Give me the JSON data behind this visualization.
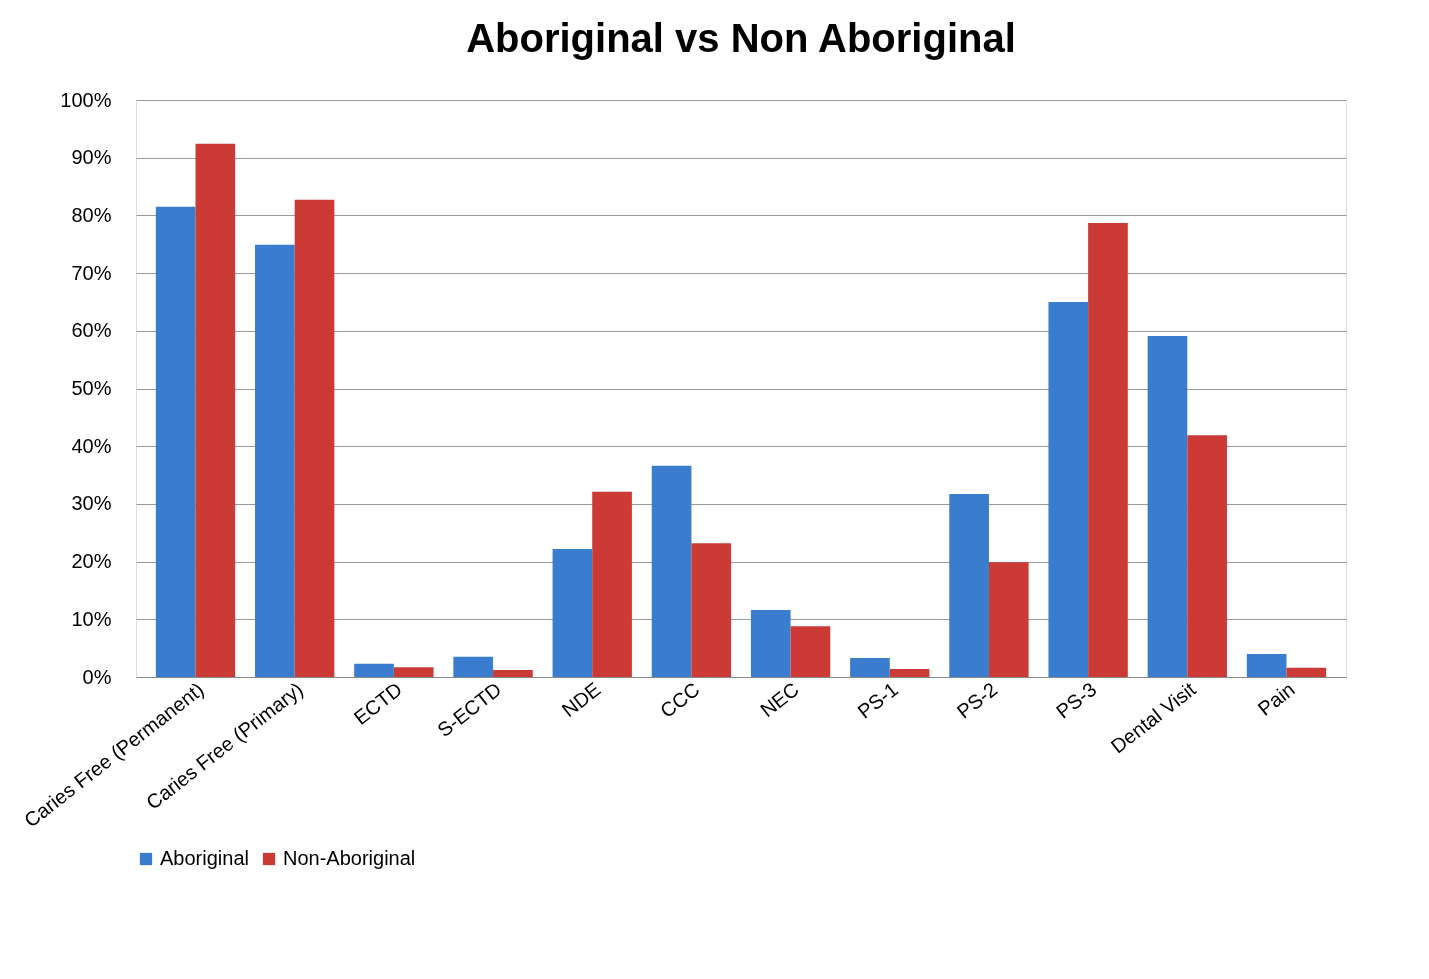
{
  "chart_data": {
    "type": "bar",
    "title": "Aboriginal vs Non Aboriginal",
    "categories": [
      "Caries Free (Permanent)",
      "Caries Free (Primary)",
      "ECTD",
      "S-ECTD",
      "NDE",
      "CCC",
      "NEC",
      "PS-1",
      "PS-2",
      "PS-3",
      "Dental Visit",
      "Pain"
    ],
    "series": [
      {
        "name": "Aboriginal",
        "color": "#3a7dcf",
        "values": [
          81.5,
          74.9,
          2.3,
          3.5,
          22.2,
          36.6,
          11.6,
          3.3,
          31.7,
          65.0,
          59.1,
          4.0
        ]
      },
      {
        "name": "Non-Aboriginal",
        "color": "#cc3a36",
        "values": [
          92.4,
          82.7,
          1.7,
          1.2,
          32.1,
          23.2,
          8.8,
          1.4,
          19.9,
          78.7,
          41.9,
          1.6
        ]
      }
    ],
    "ylim": [
      0,
      100
    ],
    "yticks": [
      {
        "value": 0,
        "label": "0%"
      },
      {
        "value": 10,
        "label": "10%"
      },
      {
        "value": 20,
        "label": "20%"
      },
      {
        "value": 30,
        "label": "30%"
      },
      {
        "value": 40,
        "label": "40%"
      },
      {
        "value": 50,
        "label": "50%"
      },
      {
        "value": 60,
        "label": "60%"
      },
      {
        "value": 70,
        "label": "70%"
      },
      {
        "value": 80,
        "label": "80%"
      },
      {
        "value": 90,
        "label": "90%"
      },
      {
        "value": 100,
        "label": "100%"
      }
    ],
    "grid": "y",
    "legend": "bottom"
  }
}
